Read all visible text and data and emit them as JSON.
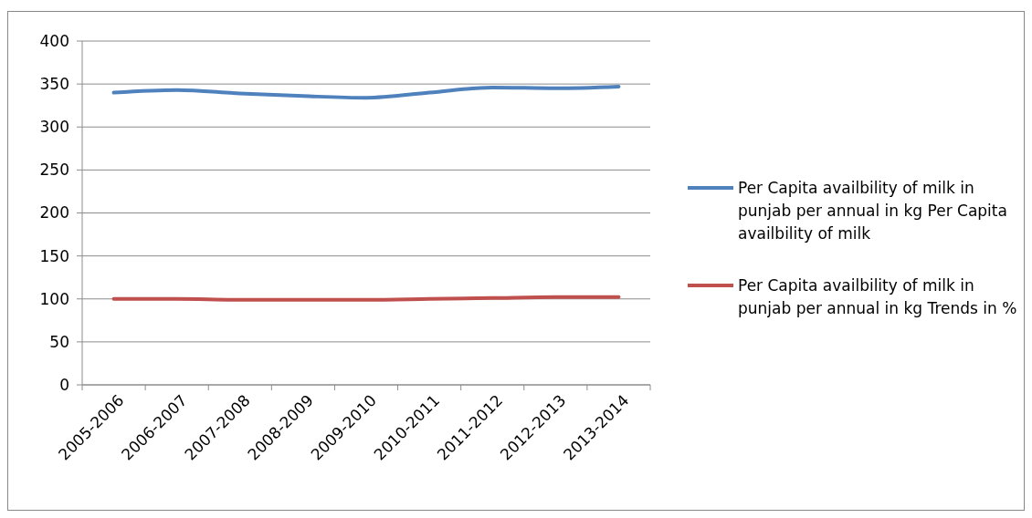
{
  "chart_data": {
    "type": "line",
    "categories": [
      "2005-2006",
      "2006-2007",
      "2007-2008",
      "2008-2009",
      "2009-2010",
      "2010-2011",
      "2011-2012",
      "2012-2013",
      "2013-2014"
    ],
    "series": [
      {
        "name": "Per Capita availbility of milk in punjab per annual in kg Per Capita availbility of milk",
        "color": "#4f81bd",
        "values": [
          340,
          343,
          339,
          336,
          334,
          340,
          346,
          345,
          347
        ]
      },
      {
        "name": "Per Capita availbility of milk in punjab per annual in kg Trends in %",
        "color": "#c0504d",
        "values": [
          100,
          100,
          99,
          99,
          99,
          100,
          101,
          102,
          102
        ]
      }
    ],
    "ylim": [
      0,
      400
    ],
    "yticks": [
      0,
      50,
      100,
      150,
      200,
      250,
      300,
      350,
      400
    ],
    "grid": "y",
    "legend": "right",
    "marker": "none",
    "line_style": "solid"
  }
}
